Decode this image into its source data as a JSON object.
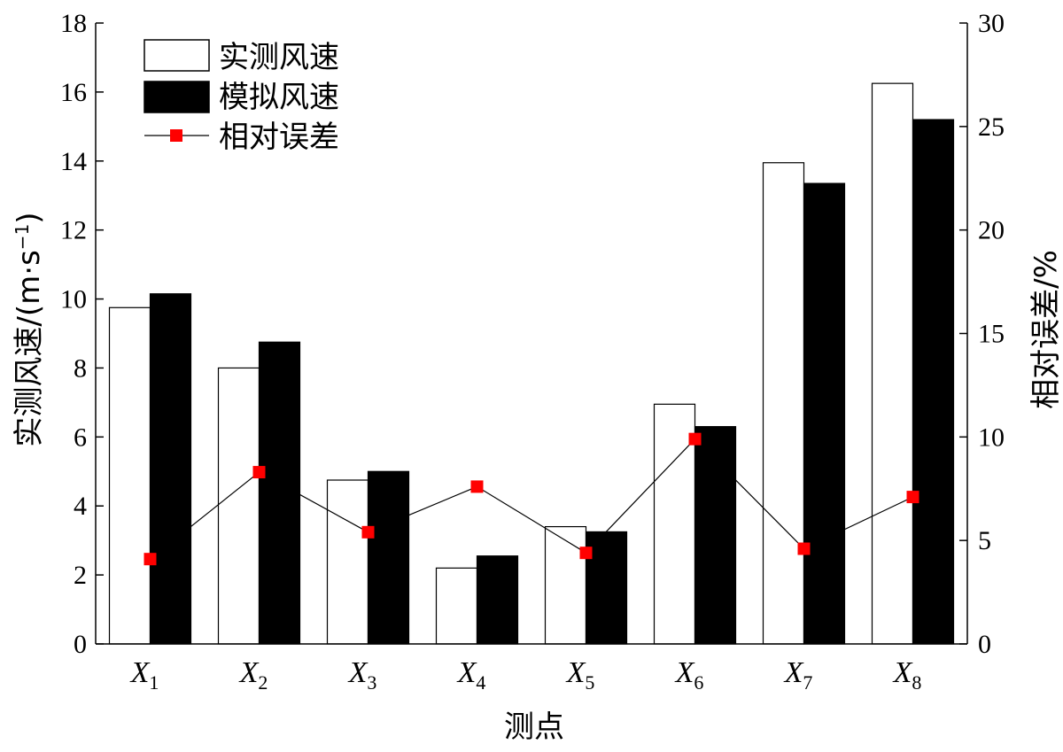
{
  "chart_data": {
    "type": "bar",
    "categories": [
      {
        "base": "X",
        "sub": "1"
      },
      {
        "base": "X",
        "sub": "2"
      },
      {
        "base": "X",
        "sub": "3"
      },
      {
        "base": "X",
        "sub": "4"
      },
      {
        "base": "X",
        "sub": "5"
      },
      {
        "base": "X",
        "sub": "6"
      },
      {
        "base": "X",
        "sub": "7"
      },
      {
        "base": "X",
        "sub": "8"
      }
    ],
    "series": [
      {
        "name": "实测风速",
        "kind": "bar",
        "axis": "left",
        "fill": "#ffffff",
        "stroke": "#000000",
        "values": [
          9.75,
          8.0,
          4.75,
          2.2,
          3.4,
          6.95,
          13.95,
          16.25
        ]
      },
      {
        "name": "模拟风速",
        "kind": "bar",
        "axis": "left",
        "fill": "#000000",
        "stroke": "#000000",
        "values": [
          10.15,
          8.75,
          5.0,
          2.55,
          3.25,
          6.3,
          13.35,
          15.2
        ]
      },
      {
        "name": "相对误差",
        "kind": "line",
        "axis": "right",
        "color": "#ff0000",
        "values": [
          4.1,
          8.3,
          5.4,
          7.6,
          4.4,
          9.9,
          4.6,
          7.1
        ]
      }
    ],
    "xlabel": "测点",
    "ylabel": "实测风速/(m·s",
    "ylabel_sup": "−1",
    "ylabel_close": ")",
    "y2label": "相对误差/%",
    "ylim": [
      0,
      18
    ],
    "yticks": [
      "0",
      "2",
      "4",
      "6",
      "8",
      "10",
      "12",
      "14",
      "16",
      "18"
    ],
    "y2lim": [
      0,
      30
    ],
    "y2ticks": [
      "0",
      "5",
      "10",
      "15",
      "20",
      "25",
      "30"
    ],
    "legend_position": "top-left",
    "grid": false
  }
}
